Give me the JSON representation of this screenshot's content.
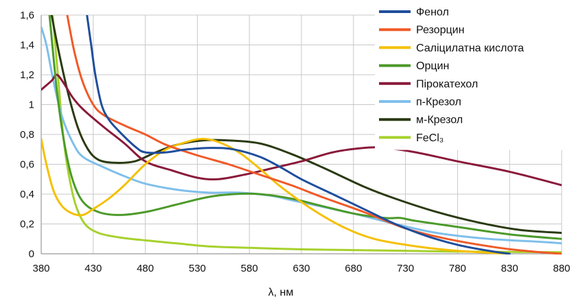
{
  "chart_data": {
    "type": "line",
    "xlabel": "λ, нм",
    "ylabel": "",
    "xlim": [
      380,
      880
    ],
    "ylim": [
      0,
      1.6
    ],
    "x_ticks": [
      "380",
      "430",
      "480",
      "530",
      "580",
      "630",
      "680",
      "730",
      "780",
      "830",
      "880"
    ],
    "y_ticks": [
      "0",
      "0,2",
      "0,4",
      "0,6",
      "0,8",
      "1",
      "1,2",
      "1,4",
      "1,6"
    ],
    "grid": true,
    "legend": "top-right",
    "series": [
      {
        "name": "Фенол",
        "color": "#1f4e9c",
        "points": [
          [
            424,
            1.6
          ],
          [
            428,
            1.4
          ],
          [
            432,
            1.2
          ],
          [
            438,
            1.0
          ],
          [
            445,
            0.9
          ],
          [
            455,
            0.82
          ],
          [
            470,
            0.72
          ],
          [
            480,
            0.68
          ],
          [
            500,
            0.68
          ],
          [
            520,
            0.7
          ],
          [
            545,
            0.71
          ],
          [
            565,
            0.7
          ],
          [
            590,
            0.65
          ],
          [
            610,
            0.58
          ],
          [
            630,
            0.5
          ],
          [
            660,
            0.4
          ],
          [
            690,
            0.3
          ],
          [
            720,
            0.2
          ],
          [
            750,
            0.12
          ],
          [
            780,
            0.06
          ],
          [
            810,
            0.02
          ],
          [
            830,
            0.0
          ]
        ]
      },
      {
        "name": "Резорцин",
        "color": "#f05a28",
        "points": [
          [
            405,
            1.6
          ],
          [
            412,
            1.35
          ],
          [
            420,
            1.15
          ],
          [
            430,
            1.0
          ],
          [
            440,
            0.93
          ],
          [
            460,
            0.86
          ],
          [
            480,
            0.8
          ],
          [
            500,
            0.73
          ],
          [
            530,
            0.66
          ],
          [
            560,
            0.6
          ],
          [
            590,
            0.53
          ],
          [
            620,
            0.46
          ],
          [
            650,
            0.38
          ],
          [
            690,
            0.28
          ],
          [
            730,
            0.17
          ],
          [
            770,
            0.1
          ],
          [
            820,
            0.04
          ],
          [
            860,
            0.01
          ],
          [
            880,
            0.0
          ]
        ]
      },
      {
        "name": "Саліцилатна кислота",
        "color": "#f5c000",
        "points": [
          [
            380,
            0.77
          ],
          [
            385,
            0.6
          ],
          [
            392,
            0.42
          ],
          [
            400,
            0.32
          ],
          [
            410,
            0.27
          ],
          [
            420,
            0.26
          ],
          [
            430,
            0.3
          ],
          [
            445,
            0.37
          ],
          [
            460,
            0.46
          ],
          [
            480,
            0.6
          ],
          [
            500,
            0.7
          ],
          [
            520,
            0.75
          ],
          [
            535,
            0.77
          ],
          [
            550,
            0.75
          ],
          [
            570,
            0.68
          ],
          [
            590,
            0.57
          ],
          [
            610,
            0.45
          ],
          [
            640,
            0.3
          ],
          [
            670,
            0.18
          ],
          [
            700,
            0.1
          ],
          [
            740,
            0.05
          ],
          [
            780,
            0.02
          ],
          [
            830,
            0.0
          ]
        ]
      },
      {
        "name": "Орцин",
        "color": "#4c9a2a",
        "points": [
          [
            388,
            1.6
          ],
          [
            395,
            1.1
          ],
          [
            402,
            0.75
          ],
          [
            410,
            0.5
          ],
          [
            420,
            0.35
          ],
          [
            435,
            0.28
          ],
          [
            455,
            0.26
          ],
          [
            480,
            0.28
          ],
          [
            510,
            0.33
          ],
          [
            540,
            0.38
          ],
          [
            565,
            0.4
          ],
          [
            590,
            0.4
          ],
          [
            620,
            0.37
          ],
          [
            650,
            0.32
          ],
          [
            680,
            0.27
          ],
          [
            710,
            0.24
          ],
          [
            725,
            0.24
          ],
          [
            740,
            0.22
          ],
          [
            780,
            0.18
          ],
          [
            830,
            0.13
          ],
          [
            880,
            0.1
          ]
        ]
      },
      {
        "name": "Пірокатехол",
        "color": "#8a1a3a",
        "points": [
          [
            380,
            1.1
          ],
          [
            390,
            1.16
          ],
          [
            395,
            1.2
          ],
          [
            402,
            1.14
          ],
          [
            410,
            1.05
          ],
          [
            420,
            0.97
          ],
          [
            440,
            0.85
          ],
          [
            460,
            0.74
          ],
          [
            480,
            0.62
          ],
          [
            505,
            0.56
          ],
          [
            530,
            0.51
          ],
          [
            550,
            0.5
          ],
          [
            575,
            0.53
          ],
          [
            600,
            0.57
          ],
          [
            630,
            0.62
          ],
          [
            660,
            0.68
          ],
          [
            690,
            0.71
          ],
          [
            710,
            0.71
          ],
          [
            740,
            0.68
          ],
          [
            780,
            0.62
          ],
          [
            830,
            0.55
          ],
          [
            880,
            0.46
          ]
        ]
      },
      {
        "name": "п-Крезол",
        "color": "#7fbfeb",
        "points": [
          [
            380,
            1.52
          ],
          [
            385,
            1.4
          ],
          [
            392,
            1.15
          ],
          [
            400,
            0.92
          ],
          [
            410,
            0.75
          ],
          [
            420,
            0.65
          ],
          [
            440,
            0.58
          ],
          [
            460,
            0.52
          ],
          [
            480,
            0.47
          ],
          [
            510,
            0.43
          ],
          [
            540,
            0.41
          ],
          [
            570,
            0.41
          ],
          [
            600,
            0.39
          ],
          [
            620,
            0.36
          ],
          [
            640,
            0.33
          ],
          [
            680,
            0.27
          ],
          [
            720,
            0.2
          ],
          [
            760,
            0.14
          ],
          [
            810,
            0.1
          ],
          [
            860,
            0.08
          ],
          [
            880,
            0.07
          ]
        ]
      },
      {
        "name": "м-Крезол",
        "color": "#2b3a12",
        "points": [
          [
            390,
            1.6
          ],
          [
            397,
            1.35
          ],
          [
            405,
            1.1
          ],
          [
            415,
            0.85
          ],
          [
            425,
            0.7
          ],
          [
            435,
            0.63
          ],
          [
            450,
            0.61
          ],
          [
            470,
            0.62
          ],
          [
            490,
            0.68
          ],
          [
            510,
            0.73
          ],
          [
            535,
            0.76
          ],
          [
            560,
            0.76
          ],
          [
            590,
            0.74
          ],
          [
            620,
            0.67
          ],
          [
            650,
            0.58
          ],
          [
            690,
            0.45
          ],
          [
            720,
            0.37
          ],
          [
            760,
            0.28
          ],
          [
            800,
            0.21
          ],
          [
            840,
            0.16
          ],
          [
            880,
            0.14
          ]
        ]
      },
      {
        "name": "FeCl₃",
        "color": "#a6d12c",
        "points": [
          [
            391,
            1.6
          ],
          [
            396,
            1.2
          ],
          [
            401,
            0.8
          ],
          [
            406,
            0.55
          ],
          [
            413,
            0.33
          ],
          [
            422,
            0.2
          ],
          [
            435,
            0.14
          ],
          [
            455,
            0.11
          ],
          [
            480,
            0.09
          ],
          [
            510,
            0.07
          ],
          [
            540,
            0.05
          ],
          [
            580,
            0.04
          ],
          [
            630,
            0.03
          ],
          [
            680,
            0.025
          ],
          [
            730,
            0.02
          ],
          [
            780,
            0.015
          ],
          [
            880,
            0.01
          ]
        ]
      }
    ]
  }
}
